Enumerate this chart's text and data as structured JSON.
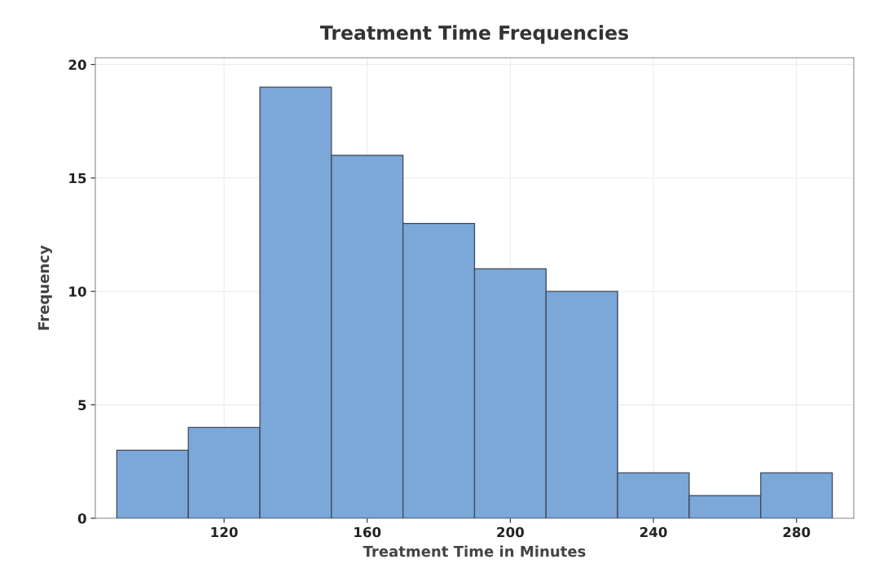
{
  "chart_data": {
    "type": "histogram",
    "title": "Treatment Time Frequencies",
    "xlabel": "Treatment Time in Minutes",
    "ylabel": "Frequency",
    "bins": [
      90,
      110,
      130,
      150,
      170,
      190,
      210,
      230,
      250,
      270,
      290
    ],
    "values": [
      3,
      4,
      19,
      16,
      13,
      11,
      10,
      2,
      1,
      2
    ],
    "color": "#7ba7d9",
    "xlim": [
      84,
      296
    ],
    "xticks": [
      120,
      160,
      200,
      240,
      280
    ],
    "ylim": [
      0,
      20.3
    ],
    "yticks": [
      0,
      5,
      10,
      15,
      20
    ],
    "grid": true
  }
}
